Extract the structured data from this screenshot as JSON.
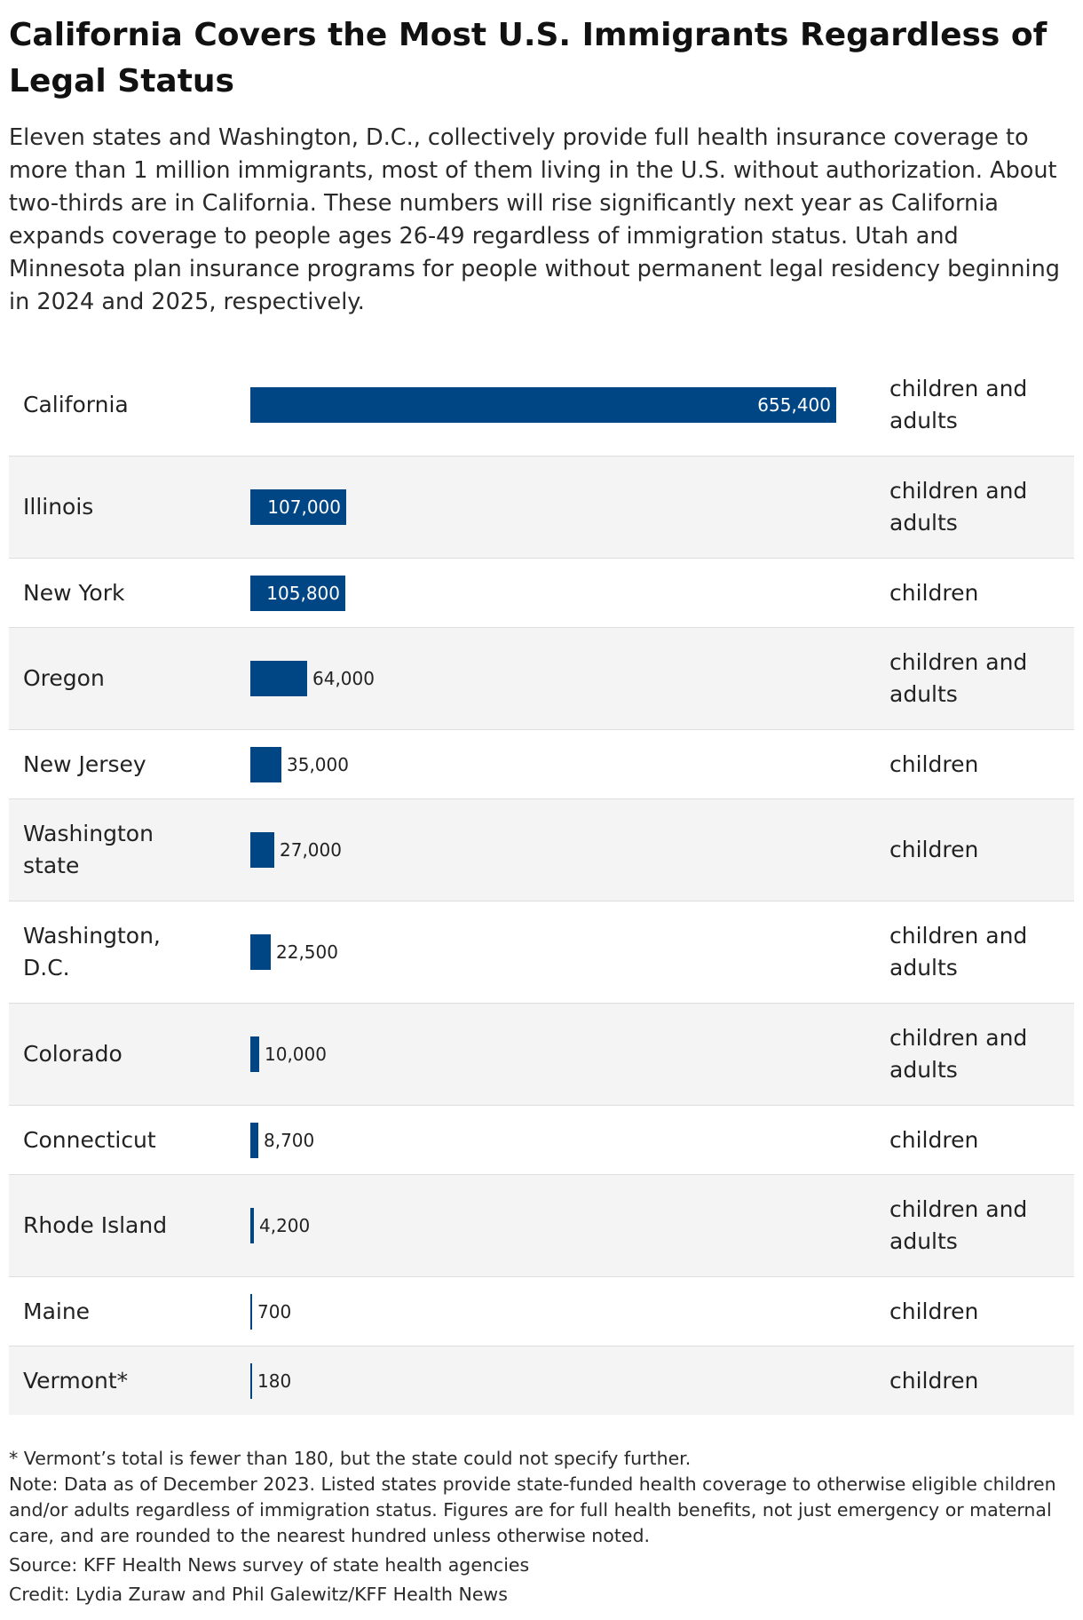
{
  "title": "California Covers the Most U.S. Immigrants Regardless of Legal Status",
  "subtitle": "Eleven states and Washington, D.C., collectively provide full health insurance coverage to more than 1 million immigrants, most of them living in the U.S. without authorization. About two-thirds are in California. These numbers will rise significantly next year as California expands coverage to people ages 26-49 regardless of immigration status. Utah and Minnesota plan insurance programs for people without permanent legal residency beginning in 2024 and 2025, respectively.",
  "colors": {
    "bar": "#004685",
    "row_alt": "#f4f4f4",
    "row_border": "#dedede"
  },
  "chart_data": {
    "type": "table",
    "categories": [
      "California",
      "Illinois",
      "New York",
      "Oregon",
      "New Jersey",
      "Washington state",
      "Washington, D.C.",
      "Colorado",
      "Connecticut",
      "Rhode Island",
      "Maine",
      "Vermont*"
    ],
    "values": [
      655400,
      107000,
      105800,
      64000,
      35000,
      27000,
      22500,
      10000,
      8700,
      4200,
      700,
      180
    ],
    "value_labels": [
      "655,400",
      "107,000",
      "105,800",
      "64,000",
      "35,000",
      "27,000",
      "22,500",
      "10,000",
      "8,700",
      "4,200",
      "700",
      "180"
    ],
    "coverage": [
      "children and adults",
      "children and adults",
      "children",
      "children and adults",
      "children",
      "children",
      "children and adults",
      "children and adults",
      "children",
      "children and adults",
      "children",
      "children"
    ],
    "xlim": [
      0,
      655400
    ]
  },
  "footer": {
    "footnote": "* Vermont’s total is fewer than 180, but the state could not specify further.",
    "note": "Note: Data as of December 2023. Listed states provide state-funded health coverage to otherwise eligible children and/or adults regardless of immigration status. Figures are for full health benefits, not just emergency or maternal care, and are rounded to the nearest hundred unless otherwise noted.",
    "source": "Source: KFF Health News survey of state health agencies",
    "credit": "Credit: Lydia Zuraw and Phil Galewitz/KFF Health News"
  }
}
